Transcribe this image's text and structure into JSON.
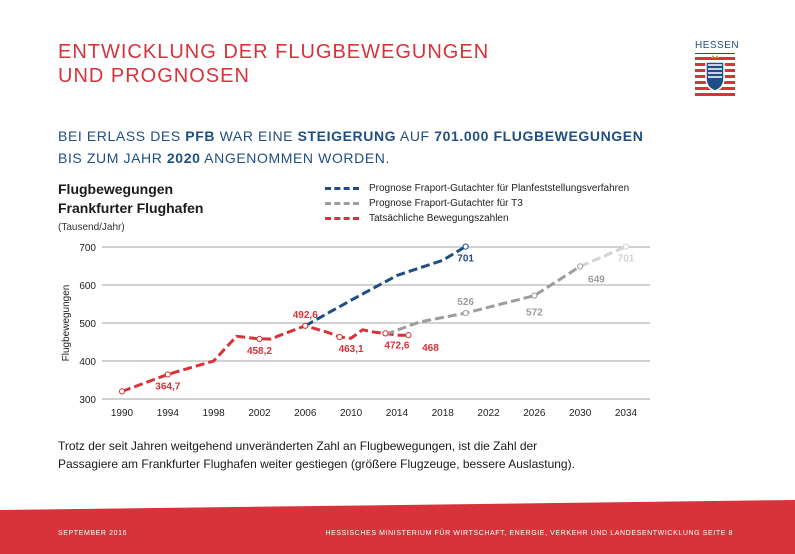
{
  "header": {
    "title_line1": "ENTWICKLUNG DER FLUGBEWEGUNGEN",
    "title_line2": "UND PROGNOSEN",
    "logo_text": "HESSEN"
  },
  "headline": {
    "p1": "BEI ERLASS DES ",
    "b1": "PFB",
    "p2": " WAR EINE ",
    "b2": "STEIGERUNG",
    "p3": " AUF ",
    "b3": "701.000 FLUGBEWEGUNGEN",
    "p4": "BIS ZUM JAHR ",
    "b4": "2020",
    "p5": " ANGENOMMEN WORDEN."
  },
  "footnote": {
    "line1": "Trotz der seit Jahren weitgehend unveränderten Zahl an Flugbewegungen, ist die Zahl der",
    "line2": "Passagiere am Frankfurter Flughafen weiter gestiegen (größere Flugzeuge, bessere Auslastung)."
  },
  "footer": {
    "left": "SEPTEMBER 2016",
    "right": "HESSISCHES MINISTERIUM FÜR WIRTSCHAFT, ENERGIE, VERKEHR UND LANDESENTWICKLUNG  SEITE 8"
  },
  "colors": {
    "accent_red": "#d8323a",
    "blue": "#1f4e86",
    "grey": "#9d9d9d",
    "light_grey": "#d3d3d3"
  },
  "chart_data": {
    "type": "line",
    "title_line1": "Flugbewegungen",
    "title_line2": "Frankfurter Flughafen",
    "unit_label": "(Tausend/Jahr)",
    "ylabel": "Flugbewegungen",
    "xlim": [
      1990,
      2034
    ],
    "ylim": [
      300,
      700
    ],
    "x_ticks": [
      "1990",
      "1994",
      "1998",
      "2002",
      "2006",
      "2010",
      "2014",
      "2018",
      "2022",
      "2026",
      "2030",
      "2034"
    ],
    "y_ticks": [
      "300",
      "400",
      "500",
      "600",
      "700"
    ],
    "legend": [
      "Prognose Fraport-Gutachter für Planfeststellungsverfahren",
      "Prognose Fraport-Gutachter für T3",
      "Tatsächliche Bewegungszahlen"
    ],
    "series": [
      {
        "name": "Tatsächliche Bewegungszahlen",
        "color": "#d8323a",
        "x": [
          1990,
          1994,
          1998,
          2000,
          2002,
          2003,
          2004,
          2006,
          2008,
          2009,
          2010,
          2011,
          2012,
          2013,
          2014,
          2015
        ],
        "y": [
          320,
          364.7,
          400,
          465,
          458.2,
          458,
          470,
          492.6,
          475,
          463.1,
          460,
          482,
          476,
          472.6,
          468,
          468
        ]
      },
      {
        "name": "Prognose Fraport-Gutachter für Planfeststellungsverfahren",
        "color": "#1f4e86",
        "x": [
          2006,
          2010,
          2014,
          2018,
          2020
        ],
        "y": [
          492.6,
          560,
          625,
          665,
          701
        ]
      },
      {
        "name": "Prognose Fraport-Gutachter für T3",
        "color": "#9d9d9d",
        "x": [
          2013,
          2016,
          2020,
          2026,
          2030
        ],
        "y": [
          470,
          503,
          526,
          572,
          649
        ]
      },
      {
        "name": "Prognose Fraport-Gutachter für T3 (Fortsetzung)",
        "color": "#d3d3d3",
        "x": [
          2030,
          2034
        ],
        "y": [
          649,
          701
        ]
      }
    ],
    "data_labels": [
      {
        "text": "364,7",
        "x": 1994,
        "y": 364.7,
        "pos": "below",
        "color": "#d8323a"
      },
      {
        "text": "458,2",
        "x": 2002,
        "y": 458.2,
        "pos": "below",
        "color": "#d8323a"
      },
      {
        "text": "492,6",
        "x": 2006,
        "y": 492.6,
        "pos": "above",
        "color": "#d8323a"
      },
      {
        "text": "463,1",
        "x": 2010,
        "y": 463.1,
        "pos": "below",
        "color": "#d8323a"
      },
      {
        "text": "472,6",
        "x": 2014,
        "y": 472.6,
        "pos": "below",
        "color": "#d8323a"
      },
      {
        "text": "468",
        "x": 2015.5,
        "y": 468,
        "pos": "below-right",
        "color": "#d8323a"
      },
      {
        "text": "701",
        "x": 2020,
        "y": 701,
        "pos": "below",
        "color": "#1f4e86"
      },
      {
        "text": "526",
        "x": 2020,
        "y": 526,
        "pos": "above",
        "color": "#9d9d9d"
      },
      {
        "text": "572",
        "x": 2026,
        "y": 572,
        "pos": "below-far",
        "color": "#9d9d9d"
      },
      {
        "text": "649",
        "x": 2030,
        "y": 649,
        "pos": "below-right",
        "color": "#9d9d9d"
      },
      {
        "text": "701",
        "x": 2034,
        "y": 701,
        "pos": "below",
        "color": "#d3d3d3"
      }
    ],
    "markers": [
      {
        "x": 1990,
        "y": 320,
        "color": "#d8323a"
      },
      {
        "x": 1994,
        "y": 364.7,
        "color": "#d8323a"
      },
      {
        "x": 2002,
        "y": 458.2,
        "color": "#d8323a"
      },
      {
        "x": 2006,
        "y": 492.6,
        "color": "#d8323a"
      },
      {
        "x": 2009,
        "y": 463.1,
        "color": "#d8323a"
      },
      {
        "x": 2013,
        "y": 472.6,
        "color": "#d8323a"
      },
      {
        "x": 2015,
        "y": 468,
        "color": "#d8323a"
      },
      {
        "x": 2020,
        "y": 701,
        "color": "#1f4e86"
      },
      {
        "x": 2020,
        "y": 526,
        "color": "#9d9d9d"
      },
      {
        "x": 2026,
        "y": 572,
        "color": "#9d9d9d"
      },
      {
        "x": 2030,
        "y": 649,
        "color": "#9d9d9d"
      },
      {
        "x": 2034,
        "y": 701,
        "color": "#d3d3d3"
      }
    ]
  }
}
